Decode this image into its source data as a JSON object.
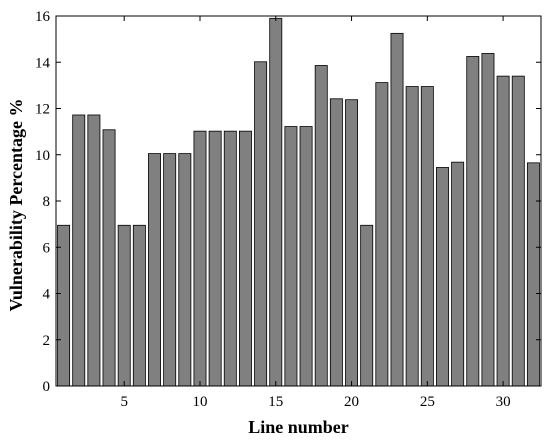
{
  "chart_data": {
    "type": "bar",
    "title": "",
    "xlabel": "Line number",
    "ylabel": "Vulnerability Percentage %",
    "x": [
      1,
      2,
      3,
      4,
      5,
      6,
      7,
      8,
      9,
      10,
      11,
      12,
      13,
      14,
      15,
      16,
      17,
      18,
      19,
      20,
      21,
      22,
      23,
      24,
      25,
      26,
      27,
      28,
      29,
      30,
      31,
      32
    ],
    "values": [
      6.95,
      11.72,
      11.72,
      11.08,
      6.95,
      6.95,
      10.05,
      10.05,
      10.05,
      11.02,
      11.02,
      11.02,
      11.02,
      14.02,
      15.9,
      11.22,
      11.22,
      13.86,
      12.42,
      12.38,
      6.95,
      13.12,
      15.25,
      12.95,
      12.95,
      9.45,
      9.68,
      14.25,
      14.38,
      13.4,
      13.4,
      9.65
    ],
    "xlim": [
      0.5,
      32.5
    ],
    "ylim": [
      0,
      16
    ],
    "xticks": [
      5,
      10,
      15,
      20,
      25,
      30
    ],
    "yticks": [
      0,
      2,
      4,
      6,
      8,
      10,
      12,
      14,
      16
    ],
    "bar_color": "#808080",
    "bar_edge_color": "#000000",
    "grid": false,
    "legend": "none"
  }
}
